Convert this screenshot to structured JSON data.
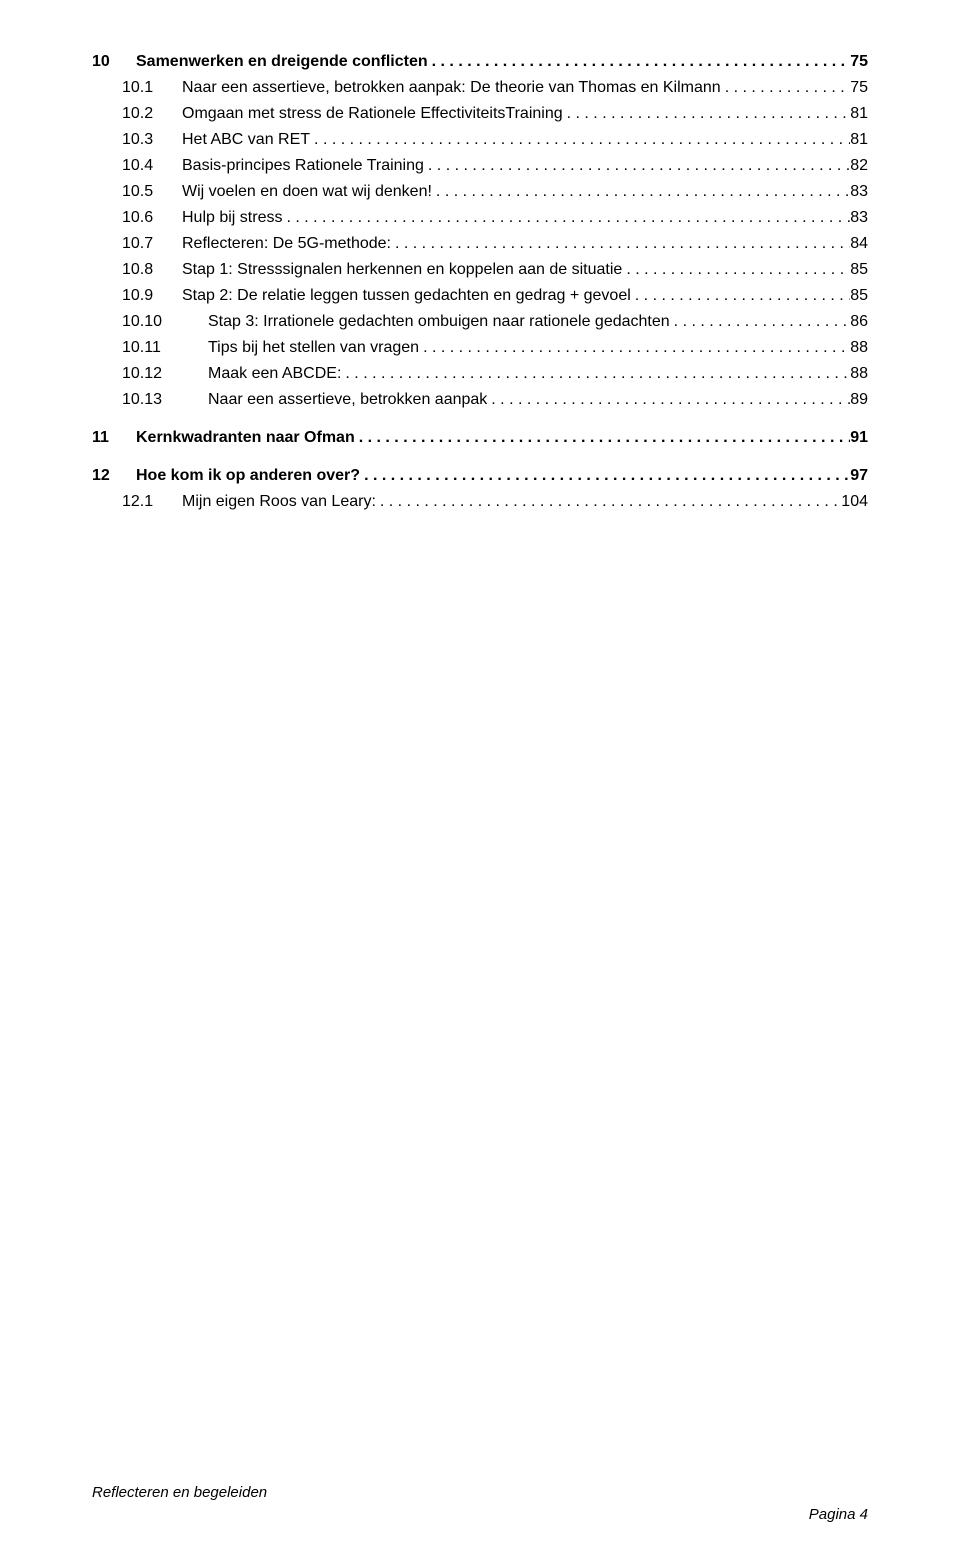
{
  "toc": [
    {
      "level": "top",
      "num": "10",
      "title": "Samenwerken en dreigende conflicten",
      "page": "75",
      "bold": true,
      "indent": 0,
      "numw": 44
    },
    {
      "level": "sub",
      "num": "10.1",
      "title": "Naar een assertieve, betrokken aanpak: De theorie van Thomas en Kilmann",
      "page": "75",
      "bold": false,
      "indent": 30,
      "numw": 60
    },
    {
      "level": "sub",
      "num": "10.2",
      "title": "Omgaan met stress de Rationele EffectiviteitsTraining",
      "page": "81",
      "bold": false,
      "indent": 30,
      "numw": 60
    },
    {
      "level": "sub",
      "num": "10.3",
      "title": "Het ABC van RET",
      "page": "81",
      "bold": false,
      "indent": 30,
      "numw": 60
    },
    {
      "level": "sub",
      "num": "10.4",
      "title": "Basis-principes Rationele Training",
      "page": "82",
      "bold": false,
      "indent": 30,
      "numw": 60
    },
    {
      "level": "sub",
      "num": "10.5",
      "title": "Wij voelen en doen wat wij denken!",
      "page": "83",
      "bold": false,
      "indent": 30,
      "numw": 60
    },
    {
      "level": "sub",
      "num": "10.6",
      "title": "Hulp bij stress",
      "page": "83",
      "bold": false,
      "indent": 30,
      "numw": 60
    },
    {
      "level": "sub",
      "num": "10.7",
      "title": "Reflecteren: De 5G-methode:",
      "page": "84",
      "bold": false,
      "indent": 30,
      "numw": 60
    },
    {
      "level": "sub",
      "num": "10.8",
      "title": "Stap 1: Stresssignalen herkennen en koppelen aan de situatie",
      "page": "85",
      "bold": false,
      "indent": 30,
      "numw": 60
    },
    {
      "level": "sub",
      "num": "10.9",
      "title": "Stap 2: De relatie leggen tussen gedachten en gedrag + gevoel",
      "page": "85",
      "bold": false,
      "indent": 30,
      "numw": 60
    },
    {
      "level": "sub",
      "num": "10.10",
      "title": "Stap 3: Irrationele gedachten ombuigen naar rationele gedachten",
      "page": "86",
      "bold": false,
      "indent": 30,
      "numw": 86
    },
    {
      "level": "sub",
      "num": "10.11",
      "title": "Tips bij het stellen van vragen",
      "page": "88",
      "bold": false,
      "indent": 30,
      "numw": 86
    },
    {
      "level": "sub",
      "num": "10.12",
      "title": "Maak een ABCDE:",
      "page": "88",
      "bold": false,
      "indent": 30,
      "numw": 86
    },
    {
      "level": "sub",
      "num": "10.13",
      "title": "Naar een assertieve, betrokken aanpak",
      "page": "89",
      "bold": false,
      "indent": 30,
      "numw": 86
    },
    {
      "level": "top",
      "num": "11",
      "title": "Kernkwadranten naar Ofman",
      "page": "91",
      "bold": true,
      "indent": 0,
      "numw": 44,
      "space_before": 14
    },
    {
      "level": "top",
      "num": "12",
      "title": "Hoe kom ik op anderen over?",
      "page": "97",
      "bold": true,
      "indent": 0,
      "numw": 44,
      "space_before": 14
    },
    {
      "level": "sub",
      "num": "12.1",
      "title": "Mijn eigen Roos van Leary:",
      "page": "104",
      "bold": false,
      "indent": 30,
      "numw": 60
    }
  ],
  "footer": {
    "left": "Reflecteren en begeleiden",
    "right": "Pagina 4"
  },
  "colors": {
    "text": "#000000",
    "background": "#ffffff"
  },
  "typography": {
    "body_fontsize_pt": 12,
    "bold_weight": 700,
    "font_family": "Arial"
  }
}
